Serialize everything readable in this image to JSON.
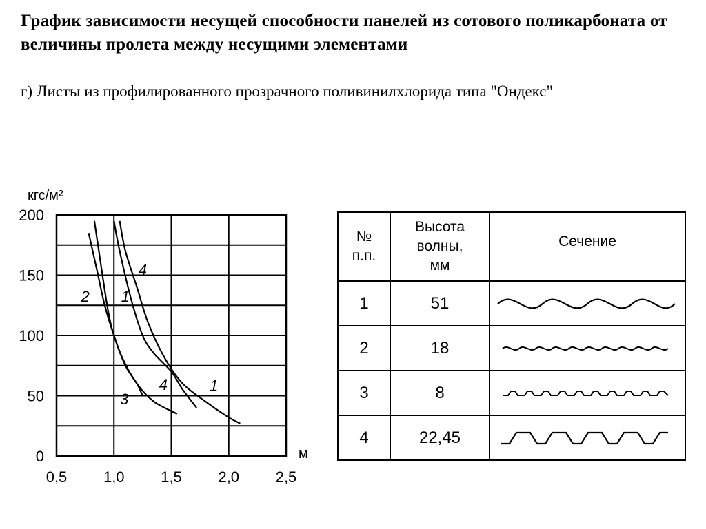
{
  "header": {
    "title": "График зависимости несущей способности панелей из сотового поликарбоната от величины пролета между несущими элементами",
    "subtitle": "г) Листы из профилированного прозрачного поливинилхлорида типа \"Ондекс\""
  },
  "chart_data": {
    "type": "line",
    "xlabel": "м",
    "ylabel": "кгс/м²",
    "xlim": [
      0.5,
      2.5
    ],
    "ylim": [
      0,
      200
    ],
    "x_ticks": [
      "0,5",
      "1,0",
      "1,5",
      "2,0",
      "2,5"
    ],
    "y_ticks": [
      "200",
      "150",
      "100",
      "50",
      "0"
    ],
    "grid": true,
    "series": [
      {
        "name": "1",
        "points": [
          [
            1.05,
            195
          ],
          [
            1.1,
            170
          ],
          [
            1.2,
            140
          ],
          [
            1.3,
            110
          ],
          [
            1.45,
            80
          ],
          [
            1.6,
            60
          ],
          [
            1.8,
            45
          ],
          [
            2.0,
            32
          ],
          [
            2.1,
            27
          ]
        ]
      },
      {
        "name": "2",
        "points": [
          [
            0.78,
            185
          ],
          [
            0.85,
            155
          ],
          [
            0.92,
            125
          ],
          [
            1.0,
            100
          ],
          [
            1.08,
            80
          ],
          [
            1.2,
            60
          ],
          [
            1.35,
            45
          ],
          [
            1.55,
            35
          ]
        ]
      },
      {
        "name": "3",
        "points": [
          [
            0.83,
            195
          ],
          [
            0.9,
            150
          ],
          [
            0.95,
            120
          ],
          [
            1.0,
            100
          ],
          [
            1.1,
            75
          ],
          [
            1.2,
            60
          ],
          [
            1.25,
            50
          ]
        ]
      },
      {
        "name": "4",
        "points": [
          [
            1.0,
            195
          ],
          [
            1.05,
            170
          ],
          [
            1.15,
            130
          ],
          [
            1.25,
            100
          ],
          [
            1.35,
            85
          ],
          [
            1.5,
            70
          ],
          [
            1.6,
            55
          ],
          [
            1.72,
            40
          ]
        ]
      }
    ],
    "annotations": [
      {
        "text": "1",
        "x": 1.1,
        "y": 128
      },
      {
        "text": "1",
        "x": 1.87,
        "y": 54
      },
      {
        "text": "2",
        "x": 0.75,
        "y": 128
      },
      {
        "text": "3",
        "x": 1.09,
        "y": 43
      },
      {
        "text": "4",
        "x": 1.25,
        "y": 150
      },
      {
        "text": "4",
        "x": 1.43,
        "y": 55
      }
    ]
  },
  "table": {
    "headers": [
      "№ п.п.",
      "Высота волны, мм",
      "Сечение"
    ],
    "rows": [
      {
        "num": "1",
        "height": "51",
        "profile": "sine-wave-high"
      },
      {
        "num": "2",
        "height": "18",
        "profile": "sine-wave-low"
      },
      {
        "num": "3",
        "height": "8",
        "profile": "small-wave"
      },
      {
        "num": "4",
        "height": "22,45",
        "profile": "trapezoidal-wave"
      }
    ]
  }
}
